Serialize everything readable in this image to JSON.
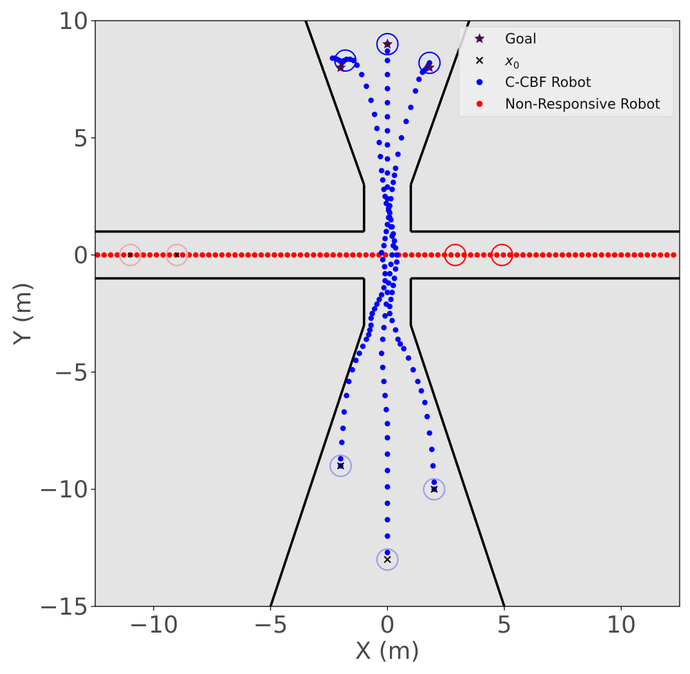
{
  "chart_data": {
    "type": "scatter",
    "xlabel": "X (m)",
    "ylabel": "Y (m)",
    "xlim": [
      -12.5,
      12.5
    ],
    "ylim": [
      -15,
      10
    ],
    "xticks": [
      -10,
      -5,
      0,
      5,
      10
    ],
    "yticks": [
      10,
      5,
      0,
      -5,
      -10,
      -15
    ],
    "xtick_labels": [
      "−10",
      "−5",
      "0",
      "5",
      "10"
    ],
    "ytick_labels": [
      "10",
      "5",
      "0",
      "−5",
      "−10",
      "−15"
    ],
    "grid": false,
    "legend_position": "top-right",
    "legend": [
      {
        "label": "Goal",
        "marker": "star",
        "color": "#4b0a4f"
      },
      {
        "label": "x0",
        "marker": "x",
        "color": "#000000"
      },
      {
        "label": "C-CBF Robot",
        "marker": "circle",
        "color": "#0000ff"
      },
      {
        "label": "Non-Responsive Robot",
        "marker": "circle",
        "color": "#ff0000"
      }
    ],
    "colors": {
      "background": "#e4e4e4",
      "c_cbf": "#0000ff",
      "non_responsive": "#ff0000",
      "goal": "#4b0a4f",
      "start": "#000000",
      "walls": "#000000"
    },
    "environment": {
      "walls": [
        [
          [
            -3.5,
            10
          ],
          [
            -1,
            3
          ]
        ],
        [
          [
            -1,
            3
          ],
          [
            -1,
            1
          ]
        ],
        [
          [
            -12.5,
            1
          ],
          [
            -1,
            1
          ]
        ],
        [
          [
            3.5,
            10
          ],
          [
            1,
            3
          ]
        ],
        [
          [
            1,
            3
          ],
          [
            1,
            1
          ]
        ],
        [
          [
            1,
            1
          ],
          [
            12.5,
            1
          ]
        ],
        [
          [
            -12.5,
            -1
          ],
          [
            -1,
            -1
          ]
        ],
        [
          [
            -1,
            -1
          ],
          [
            -1,
            -3
          ]
        ],
        [
          [
            -1,
            -3
          ],
          [
            -5,
            -15
          ]
        ],
        [
          [
            12.5,
            -1
          ],
          [
            1,
            -1
          ]
        ],
        [
          [
            1,
            -1
          ],
          [
            1,
            -3
          ]
        ],
        [
          [
            1,
            -3
          ],
          [
            5,
            -15
          ]
        ]
      ]
    },
    "goals": [
      [
        -2,
        8
      ],
      [
        0,
        9
      ],
      [
        1.8,
        8
      ]
    ],
    "start_points": [
      [
        -2,
        -9
      ],
      [
        2,
        -10
      ],
      [
        0,
        -13
      ]
    ],
    "robot_radius": 0.45,
    "c_cbf_final_positions": [
      [
        -1.8,
        8.3
      ],
      [
        0,
        9
      ],
      [
        1.8,
        8.2
      ]
    ],
    "non_responsive_start_positions": [
      [
        -11,
        0
      ],
      [
        -9,
        0
      ]
    ],
    "non_responsive_final_positions": [
      [
        2.9,
        0
      ],
      [
        4.9,
        0
      ]
    ],
    "c_cbf_trajectories": [
      {
        "x": [
          -2,
          -2,
          -1.95,
          -1.9,
          -1.85,
          -1.75,
          -1.65,
          -1.5,
          -1.35,
          -1.2,
          -1.05,
          -0.9,
          -0.8,
          -0.75,
          -0.7,
          -0.7,
          -0.65,
          -0.55,
          -0.45,
          -0.35,
          -0.25,
          -0.15,
          -0.1,
          -0.1,
          -0.12,
          -0.2,
          -0.25,
          -0.15,
          -0.1,
          -0.05,
          0,
          0.05,
          0.05,
          -0.05,
          -0.1,
          -0.15,
          -0.2,
          -0.25,
          -0.3,
          -0.35,
          -0.45,
          -0.55,
          -0.7,
          -0.9,
          -1.1,
          -1.3,
          -1.45,
          -1.6,
          -1.75,
          -1.85,
          -1.9,
          -1.95,
          -2.05,
          -2.15,
          -2.25,
          -2.35
        ],
        "y": [
          -9,
          -8.7,
          -8,
          -7.4,
          -6.7,
          -6,
          -5.4,
          -4.9,
          -4.5,
          -4.2,
          -3.9,
          -3.6,
          -3.4,
          -3.2,
          -3,
          -2.7,
          -2.5,
          -2.3,
          -2.1,
          -1.9,
          -1.7,
          -1.4,
          -1.1,
          -0.8,
          -0.5,
          -0.2,
          0.1,
          0.4,
          0.7,
          1,
          1.3,
          1.6,
          1.9,
          2.2,
          2.5,
          2.8,
          3.2,
          3.6,
          4.2,
          4.8,
          5.4,
          6,
          6.6,
          7.2,
          7.7,
          8.1,
          8.3,
          8.35,
          8.35,
          8.3,
          8.25,
          8.2,
          8.3,
          8.35,
          8.4,
          8.4
        ]
      },
      {
        "x": [
          2,
          2,
          1.95,
          1.9,
          1.8,
          1.7,
          1.6,
          1.45,
          1.3,
          1.1,
          0.9,
          0.7,
          0.55,
          0.45,
          0.35,
          0.2,
          0.1,
          0.1,
          0.15,
          0.2,
          0.25,
          0.3,
          0.35,
          0.4,
          0.4,
          0.35,
          0.3,
          0.25,
          0.2,
          0.15,
          0.1,
          0.1,
          0.15,
          0.2,
          0.25,
          0.3,
          0.35,
          0.45,
          0.6,
          0.8,
          1,
          1.2,
          1.35,
          1.5,
          1.6,
          1.7,
          1.75,
          1.8
        ],
        "y": [
          -10,
          -9.7,
          -9,
          -8.3,
          -7.6,
          -6.9,
          -6.3,
          -5.8,
          -5.4,
          -4.9,
          -4.4,
          -4,
          -3.8,
          -3.6,
          -3.2,
          -2.8,
          -2.5,
          -2.2,
          -1.9,
          -1.6,
          -1.3,
          -1,
          -0.6,
          -0.3,
          0,
          0.3,
          0.6,
          0.9,
          1.2,
          1.5,
          1.8,
          2.1,
          2.4,
          2.8,
          3.1,
          3.4,
          3.7,
          4.3,
          5,
          5.7,
          6.3,
          7,
          7.5,
          7.8,
          7.9,
          8,
          8.1,
          8.2
        ]
      },
      {
        "x": [
          0,
          0,
          0,
          0,
          0,
          0,
          0,
          0,
          0,
          -0.05,
          -0.1,
          -0.15,
          -0.2,
          -0.25,
          -0.2,
          -0.15,
          -0.1,
          -0.05,
          0,
          0.05,
          0.1,
          0.15,
          0.2,
          0.25,
          0.2,
          0.15,
          0.1,
          0.05,
          0,
          0,
          0,
          0,
          0,
          0,
          0,
          0,
          0,
          0,
          0,
          0,
          0
        ],
        "y": [
          -12.7,
          -12,
          -11.3,
          -10.6,
          -9.9,
          -9.2,
          -8.5,
          -7.8,
          -7.2,
          -6.6,
          -6,
          -5.4,
          -4.8,
          -4.2,
          -3.6,
          -3.1,
          -2.6,
          -2.1,
          -1.6,
          -1.2,
          -0.8,
          -0.4,
          0,
          0.4,
          0.8,
          1.2,
          1.6,
          2,
          2.4,
          2.9,
          3.5,
          4.1,
          4.7,
          5.3,
          5.9,
          6.5,
          7.1,
          7.7,
          8.3,
          8.7,
          9
        ]
      }
    ],
    "non_responsive_trajectory": {
      "y": 0,
      "x_min": -12.5,
      "x_max": 12.5,
      "step": 0.28
    }
  }
}
